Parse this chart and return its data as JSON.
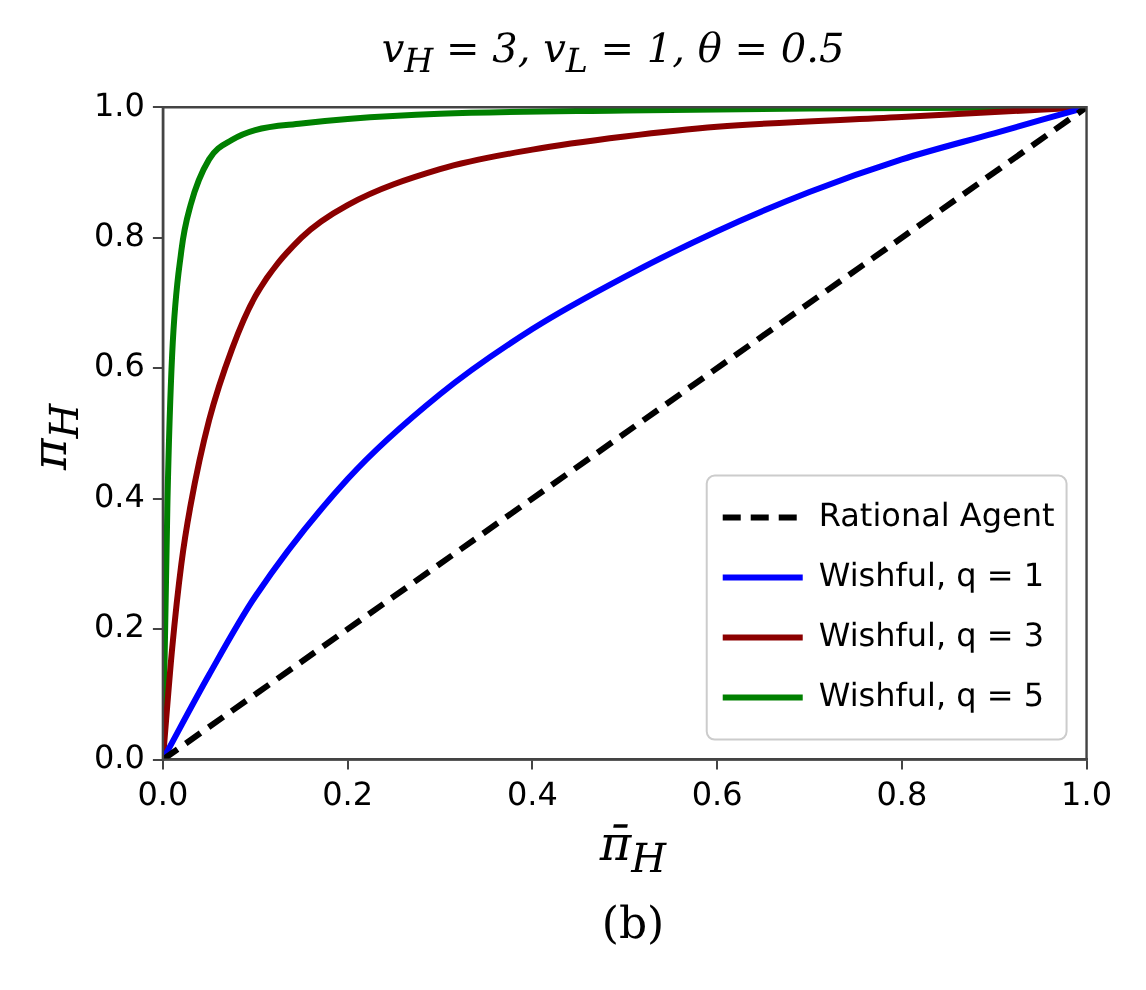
{
  "chart_data": {
    "type": "line",
    "title": "v$_{H}$ = 3, v$_{L}$ = 1, θ = 0.5",
    "xlabel": "π̄$_{H}$",
    "ylabel": "π$_{H}$",
    "annotations": [
      "(b)"
    ],
    "xlim": [
      0,
      1
    ],
    "ylim": [
      0,
      1
    ],
    "xticks": [
      {
        "value": 0,
        "label": "0.0"
      },
      {
        "value": 0.2,
        "label": "0.2"
      },
      {
        "value": 0.4,
        "label": "0.4"
      },
      {
        "value": 0.6,
        "label": "0.6"
      },
      {
        "value": 0.8,
        "label": "0.8"
      },
      {
        "value": 1,
        "label": "1.0"
      }
    ],
    "yticks": [
      {
        "value": 0,
        "label": "0.0"
      },
      {
        "value": 0.2,
        "label": "0.2"
      },
      {
        "value": 0.4,
        "label": "0.4"
      },
      {
        "value": 0.6,
        "label": "0.6"
      },
      {
        "value": 0.8,
        "label": "0.8"
      },
      {
        "value": 1,
        "label": "1.0"
      }
    ],
    "grid": false,
    "legend": "bottom right",
    "marker": "none",
    "series": [
      {
        "name": "Rational Agent",
        "color": "#000000",
        "line_style": "dashed",
        "x": [
          0,
          1
        ],
        "values": [
          0,
          1
        ]
      },
      {
        "name": "Wishful, q = 1",
        "color": "#0000ff",
        "line_style": "solid",
        "x": [
          0,
          0.05,
          0.1,
          0.2,
          0.3,
          0.4,
          0.5,
          0.6,
          0.7,
          0.8,
          0.9,
          1
        ],
        "values": [
          0,
          0.13,
          0.25,
          0.43,
          0.56,
          0.66,
          0.74,
          0.81,
          0.87,
          0.92,
          0.96,
          1
        ]
      },
      {
        "name": "Wishful, q = 3",
        "color": "#8b0000",
        "line_style": "solid",
        "x": [
          0,
          0.01,
          0.02,
          0.03,
          0.05,
          0.075,
          0.1,
          0.15,
          0.2,
          0.3,
          0.4,
          0.5,
          0.6,
          0.8,
          1
        ],
        "values": [
          0,
          0.17,
          0.3,
          0.39,
          0.52,
          0.63,
          0.71,
          0.8,
          0.85,
          0.905,
          0.935,
          0.955,
          0.97,
          0.985,
          1
        ]
      },
      {
        "name": "Wishful, q = 5",
        "color": "#008000",
        "line_style": "solid",
        "x": [
          0,
          0.005,
          0.01,
          0.02,
          0.03,
          0.05,
          0.075,
          0.1,
          0.15,
          0.2,
          0.3,
          0.5,
          0.7,
          1
        ],
        "values": [
          0,
          0.4,
          0.62,
          0.78,
          0.85,
          0.92,
          0.95,
          0.965,
          0.975,
          0.982,
          0.99,
          0.995,
          0.998,
          1
        ]
      }
    ]
  }
}
